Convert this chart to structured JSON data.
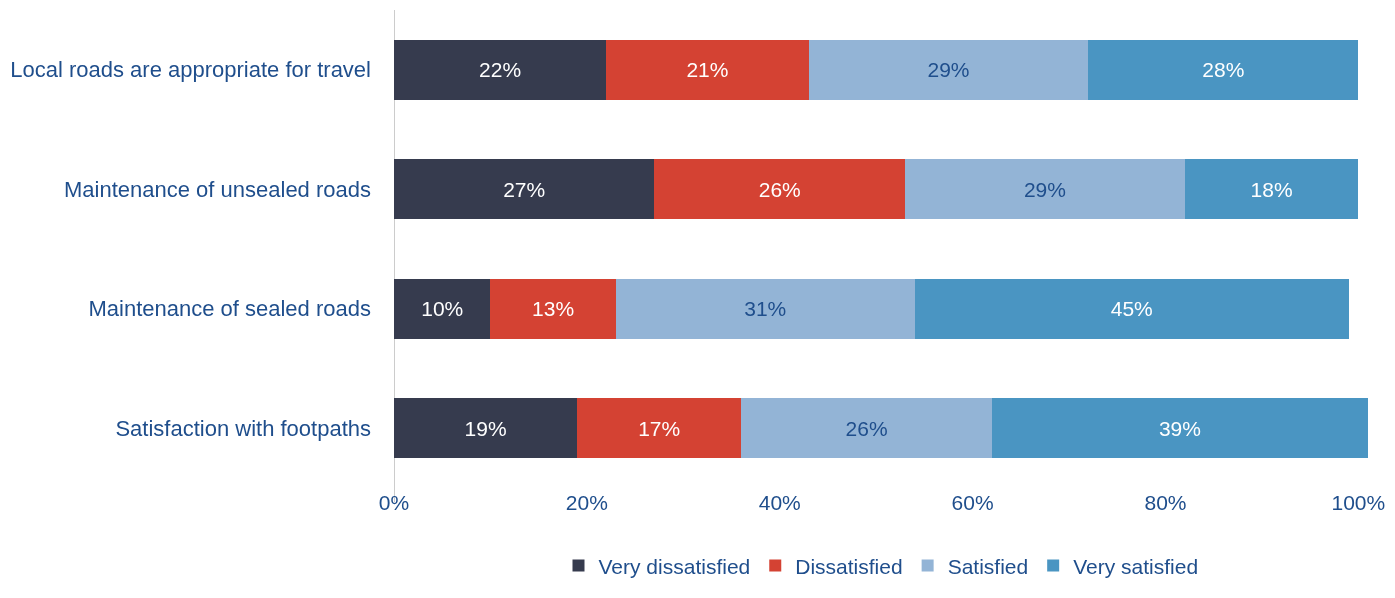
{
  "chart_data": {
    "type": "bar",
    "orientation": "horizontal",
    "stacked": true,
    "legend": "bottom",
    "categories": [
      "Local roads are appropriate for travel",
      "Maintenance of unsealed roads",
      "Maintenance of sealed roads",
      "Satisfaction with footpaths"
    ],
    "series": [
      {
        "name": "Very dissatisfied",
        "color": "#363b4e",
        "values": [
          22,
          27,
          10,
          19
        ],
        "value_labels": [
          "22%",
          "27%",
          "10%",
          "19%"
        ]
      },
      {
        "name": "Dissatisfied",
        "color": "#d44233",
        "values": [
          21,
          26,
          13,
          17
        ],
        "value_labels": [
          "21%",
          "26%",
          "13%",
          "17%"
        ]
      },
      {
        "name": "Satisfied",
        "color": "#93b4d6",
        "values": [
          29,
          29,
          31,
          26
        ],
        "value_labels": [
          "29%",
          "29%",
          "31%",
          "26%"
        ]
      },
      {
        "name": "Very satisfied",
        "color": "#4a95c2",
        "values": [
          28,
          18,
          45,
          39
        ],
        "value_labels": [
          "28%",
          "18%",
          "45%",
          "39%"
        ]
      }
    ],
    "xlim": [
      0,
      101
    ],
    "xticks": [
      {
        "value": 0,
        "label": "0%"
      },
      {
        "value": 20,
        "label": "20%"
      },
      {
        "value": 40,
        "label": "40%"
      },
      {
        "value": 60,
        "label": "60%"
      },
      {
        "value": 80,
        "label": "80%"
      },
      {
        "value": 100,
        "label": "100%"
      }
    ]
  }
}
